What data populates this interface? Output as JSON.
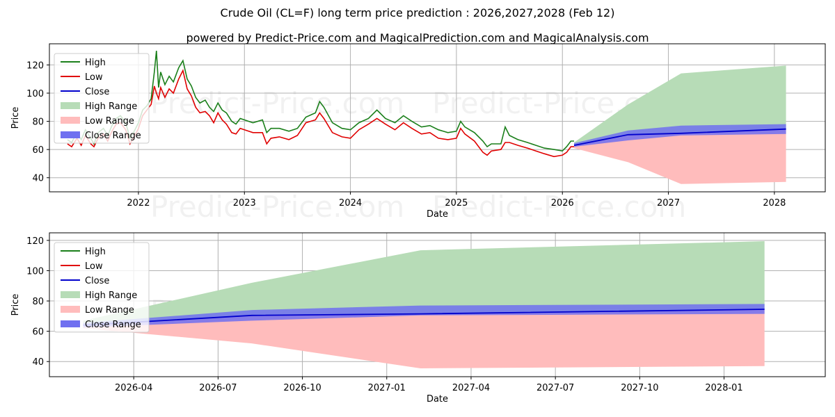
{
  "title": "Crude Oil (CL=F) long term price prediction : 2026,2027,2028 (Feb 12)",
  "subtitle": "powered by Predict-Price.com and MagicalPrediction.com and MagicalAnalysis.com",
  "watermark": "Predict-Price.com",
  "colors": {
    "high": "#1a7f1a",
    "low": "#e00000",
    "close": "#0000cc",
    "high_range": "#b7dcb7",
    "low_range": "#ffbcbc",
    "close_range": "#7070f0"
  },
  "chart_data": [
    {
      "type": "line",
      "title": "Long term history and prediction",
      "xlabel": "Date",
      "ylabel": "Price",
      "xlim": [
        2021.16,
        2028.48
      ],
      "ylim": [
        30,
        135
      ],
      "grid": true,
      "legend_position": "top-left",
      "x_ticks": [
        {
          "value": 2022,
          "label": "2022"
        },
        {
          "value": 2023,
          "label": "2023"
        },
        {
          "value": 2024,
          "label": "2024"
        },
        {
          "value": 2025,
          "label": "2025"
        },
        {
          "value": 2026,
          "label": "2026"
        },
        {
          "value": 2027,
          "label": "2027"
        },
        {
          "value": 2028,
          "label": "2028"
        }
      ],
      "y_ticks": [
        40,
        60,
        80,
        100,
        120
      ],
      "legend": [
        "High",
        "Low",
        "Close",
        "High Range",
        "Low Range",
        "Close Range"
      ],
      "history": {
        "x": [
          2021.33,
          2021.37,
          2021.42,
          2021.46,
          2021.5,
          2021.55,
          2021.58,
          2021.62,
          2021.67,
          2021.71,
          2021.75,
          2021.79,
          2021.83,
          2021.88,
          2021.92,
          2021.96,
          2022.0,
          2022.04,
          2022.08,
          2022.12,
          2022.15,
          2022.17,
          2022.19,
          2022.21,
          2022.25,
          2022.29,
          2022.33,
          2022.38,
          2022.42,
          2022.46,
          2022.5,
          2022.54,
          2022.58,
          2022.63,
          2022.67,
          2022.71,
          2022.75,
          2022.79,
          2022.83,
          2022.88,
          2022.92,
          2022.96,
          2023.0,
          2023.08,
          2023.17,
          2023.21,
          2023.25,
          2023.33,
          2023.42,
          2023.5,
          2023.58,
          2023.67,
          2023.71,
          2023.75,
          2023.83,
          2023.92,
          2024.0,
          2024.08,
          2024.17,
          2024.25,
          2024.33,
          2024.42,
          2024.5,
          2024.58,
          2024.67,
          2024.75,
          2024.83,
          2024.92,
          2025.0,
          2025.04,
          2025.08,
          2025.17,
          2025.25,
          2025.29,
          2025.33,
          2025.42,
          2025.46,
          2025.5,
          2025.58,
          2025.67,
          2025.75,
          2025.83,
          2025.92,
          2026.0,
          2026.04,
          2026.08,
          2026.11
        ],
        "high": [
          67,
          65,
          72,
          67,
          74,
          68,
          64,
          72,
          75,
          70,
          77,
          82,
          84,
          79,
          68,
          73,
          79,
          88,
          91,
          96,
          115,
          130,
          104,
          115,
          106,
          112,
          108,
          118,
          123,
          110,
          105,
          97,
          93,
          95,
          90,
          87,
          93,
          88,
          86,
          80,
          78,
          82,
          81,
          79,
          81,
          72,
          75,
          75,
          73,
          75,
          83,
          86,
          94,
          90,
          79,
          75,
          74,
          79,
          82,
          88,
          82,
          79,
          84,
          80,
          76,
          77,
          74,
          72,
          73,
          80,
          76,
          72,
          66,
          62,
          64,
          64,
          76,
          70,
          67,
          65,
          63,
          61,
          60,
          59,
          62,
          66,
          66
        ],
        "low": [
          64,
          62,
          68,
          63,
          70,
          64,
          62,
          68,
          71,
          66,
          73,
          78,
          79,
          74,
          64,
          69,
          75,
          84,
          88,
          92,
          105,
          100,
          96,
          104,
          97,
          103,
          100,
          110,
          116,
          103,
          98,
          90,
          86,
          87,
          84,
          79,
          86,
          81,
          78,
          72,
          71,
          75,
          74,
          72,
          72,
          64,
          68,
          69,
          67,
          70,
          79,
          81,
          86,
          82,
          72,
          69,
          68,
          74,
          78,
          82,
          78,
          74,
          79,
          75,
          71,
          72,
          68,
          67,
          68,
          75,
          71,
          66,
          58,
          56,
          59,
          60,
          65,
          65,
          63,
          61,
          59,
          57,
          55,
          56,
          58,
          62,
          62
        ]
      },
      "prediction": {
        "x": [
          2026.11,
          2026.62,
          2027.12,
          2028.11
        ],
        "close": [
          63,
          70.5,
          71.5,
          74.5
        ],
        "close_range_low": [
          62,
          66.5,
          70,
          71
        ],
        "close_range_high": [
          64.5,
          73.5,
          77,
          78
        ],
        "high_range": [
          65,
          92,
          114,
          119.5
        ],
        "low_range": [
          61,
          51,
          35.5,
          37
        ]
      }
    },
    {
      "type": "line",
      "title": "Prediction detail",
      "xlabel": "Date",
      "ylabel": "Price",
      "xlim": [
        2026.0,
        2028.3
      ],
      "ylim": [
        30,
        125
      ],
      "grid": true,
      "legend_position": "top-left",
      "x_ticks": [
        {
          "value": 2026.25,
          "label": "2026-04"
        },
        {
          "value": 2026.5,
          "label": "2026-07"
        },
        {
          "value": 2026.75,
          "label": "2026-10"
        },
        {
          "value": 2027.0,
          "label": "2027-01"
        },
        {
          "value": 2027.25,
          "label": "2027-04"
        },
        {
          "value": 2027.5,
          "label": "2027-07"
        },
        {
          "value": 2027.75,
          "label": "2027-10"
        },
        {
          "value": 2028.0,
          "label": "2028-01"
        }
      ],
      "y_ticks": [
        40,
        60,
        80,
        100,
        120
      ],
      "legend": [
        "High",
        "Low",
        "Close",
        "High Range",
        "Low Range",
        "Close Range"
      ],
      "prediction": {
        "x": [
          2026.1,
          2026.6,
          2027.1,
          2028.12
        ],
        "close": [
          64,
          70.5,
          71.5,
          74.5
        ],
        "close_range_low": [
          62.5,
          67,
          70.5,
          71.5
        ],
        "close_range_high": [
          65.5,
          74,
          77,
          78
        ],
        "high_range": [
          67,
          92,
          113.5,
          119.5
        ],
        "low_range": [
          62,
          52,
          35.5,
          37
        ]
      }
    }
  ]
}
